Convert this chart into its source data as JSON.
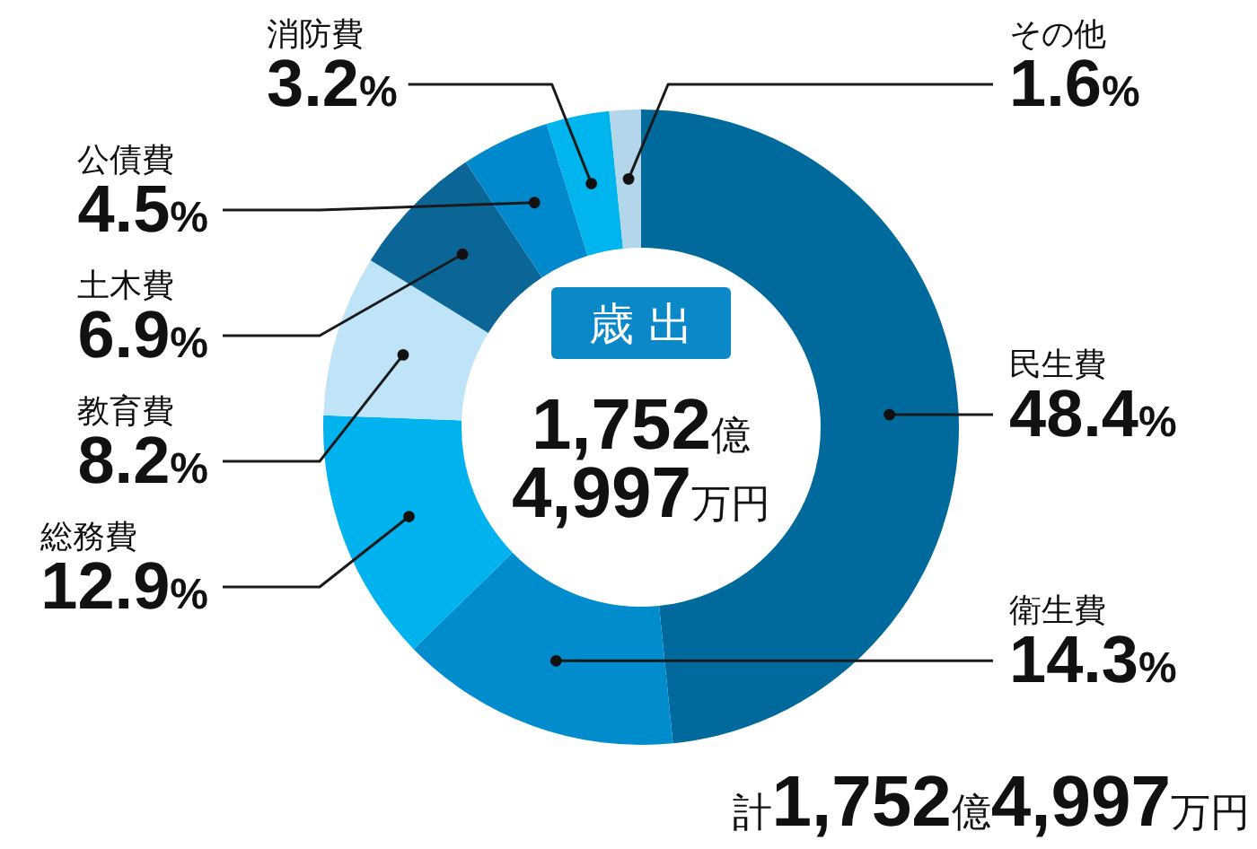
{
  "chart_data": {
    "type": "donut",
    "title": "歳出",
    "categories": [
      "民生費",
      "衛生費",
      "総務費",
      "教育費",
      "土木費",
      "公債費",
      "消防費",
      "その他"
    ],
    "values": [
      48.4,
      14.3,
      12.9,
      8.2,
      6.9,
      4.5,
      3.2,
      1.6
    ],
    "colors": [
      "#006a9c",
      "#008ccd",
      "#00b3ee",
      "#bfe4f7",
      "#0b6596",
      "#0089cc",
      "#00b5ee",
      "#b3d6ea"
    ],
    "value_labels": [
      "48.4%",
      "14.3%",
      "12.9%",
      "8.2%",
      "6.9%",
      "4.5%",
      "3.2%",
      "1.6%"
    ],
    "annotations": [
      "1,752億\n4,997万円",
      "計1,752億4,997万円"
    ]
  }
}
